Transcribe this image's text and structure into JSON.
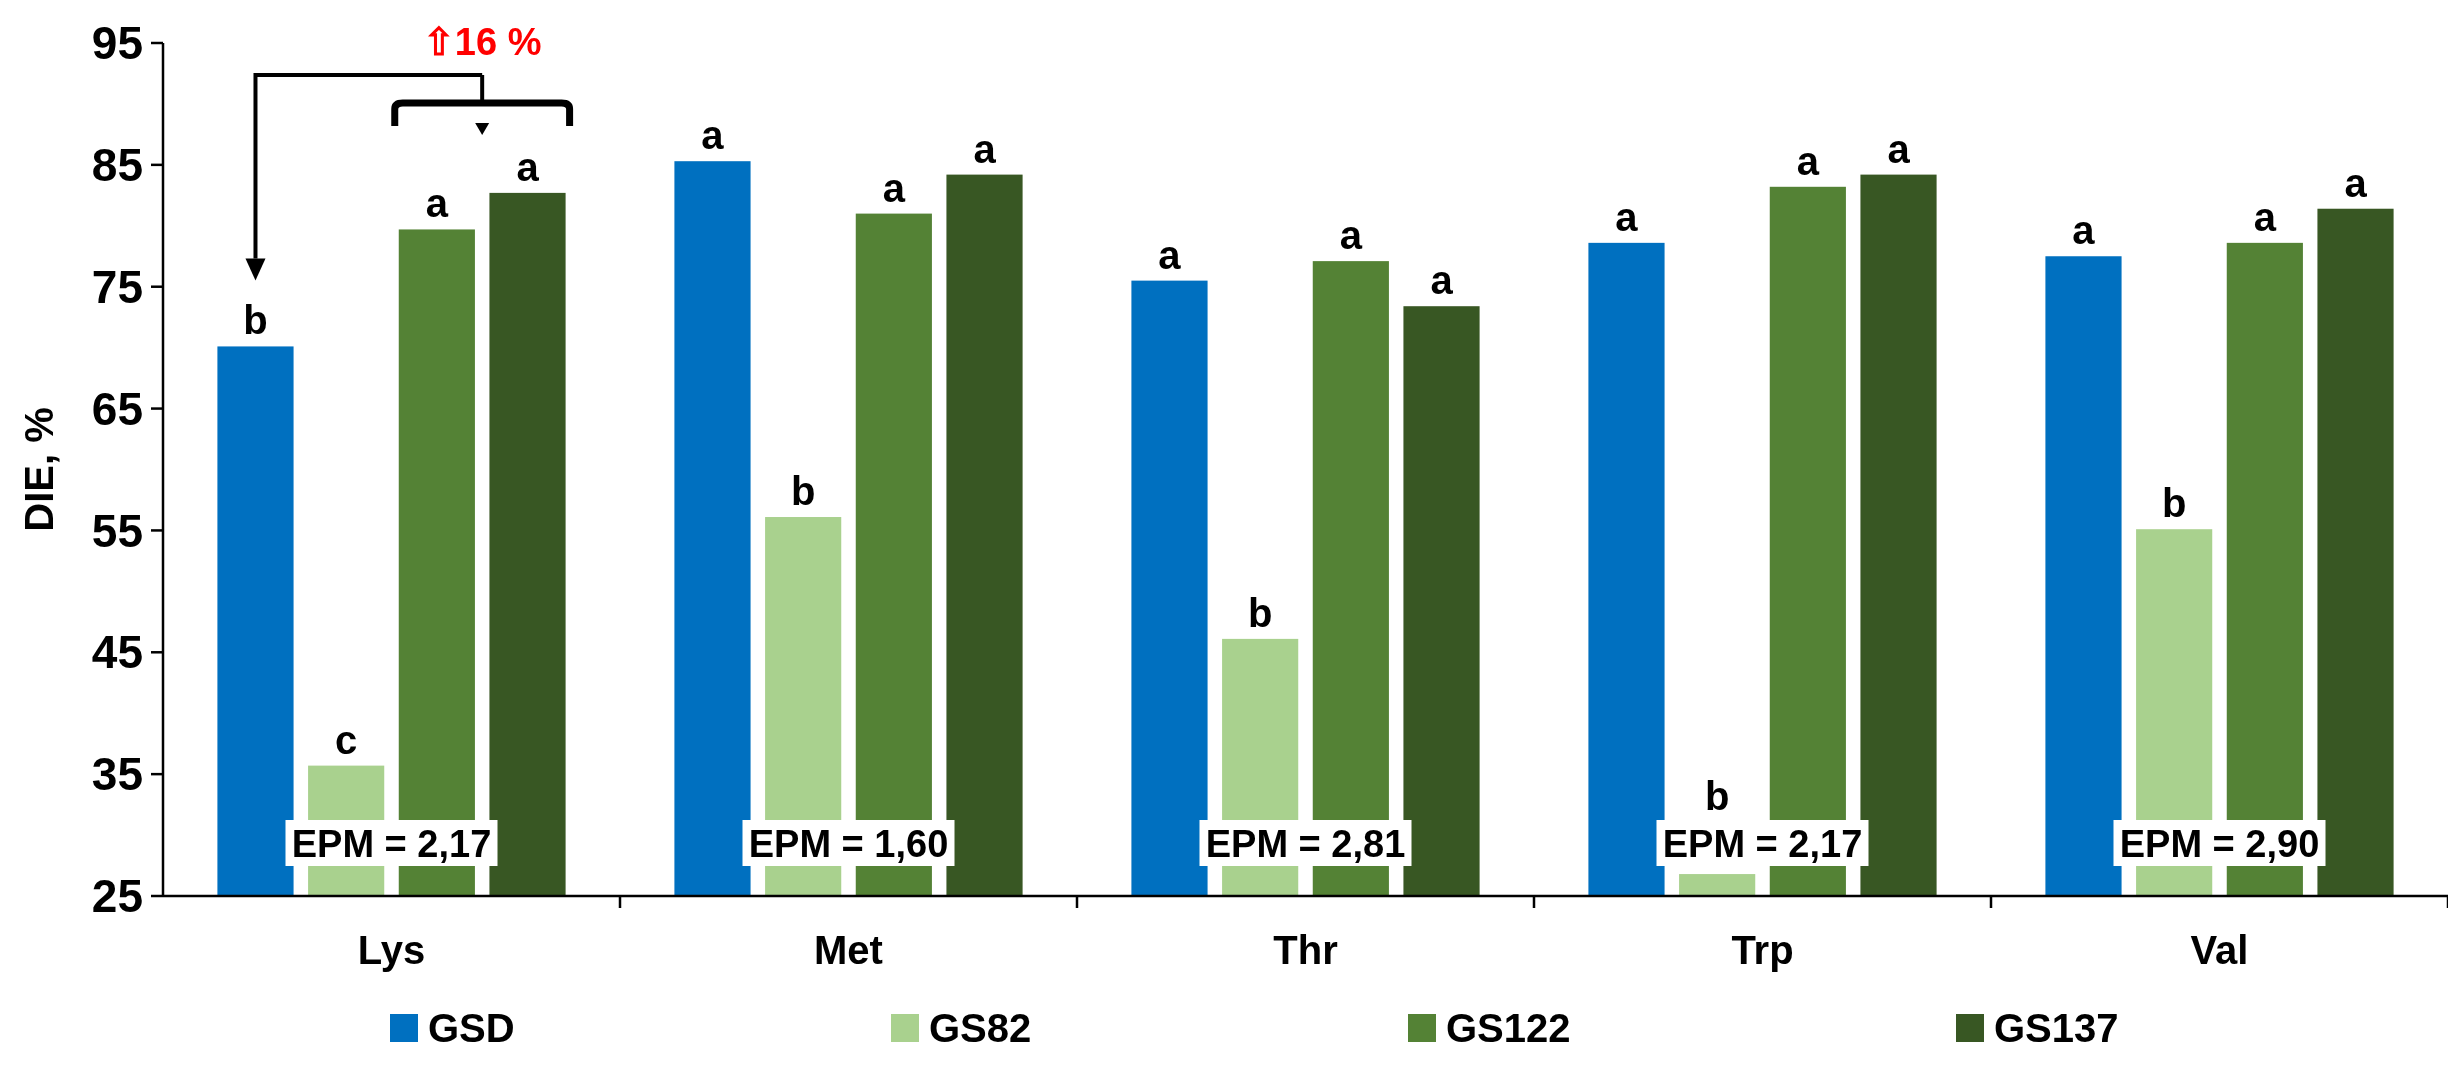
{
  "chart_data": {
    "type": "bar",
    "ylabel": "DIE, %",
    "categories": [
      "Lys",
      "Met",
      "Thr",
      "Trp",
      "Val"
    ],
    "series": [
      {
        "name": "GSD",
        "color": "#0070c0",
        "values": [
          70.1,
          85.3,
          75.5,
          78.6,
          77.5
        ],
        "value_labels": [
          "b",
          "a",
          "a",
          "a",
          "a"
        ]
      },
      {
        "name": "GS82",
        "color": "#a9d18e",
        "values": [
          35.7,
          56.1,
          46.1,
          26.8,
          55.1
        ],
        "value_labels": [
          "c",
          "b",
          "b",
          "b",
          "b"
        ]
      },
      {
        "name": "GS122",
        "color": "#548235",
        "values": [
          79.7,
          81.0,
          77.1,
          83.2,
          78.6
        ],
        "value_labels": [
          "a",
          "a",
          "a",
          "a",
          "a"
        ]
      },
      {
        "name": "GS137",
        "color": "#385723",
        "values": [
          82.7,
          84.2,
          73.4,
          84.2,
          81.4
        ],
        "value_labels": [
          "a",
          "a",
          "a",
          "a",
          "a"
        ]
      }
    ],
    "ylim": [
      25,
      95
    ],
    "yticks": [
      25,
      35,
      45,
      55,
      65,
      75,
      85,
      95
    ],
    "grid": false,
    "legend": "bottom",
    "annotations": [
      "⇧16 %",
      "EPM = 2,17",
      "EPM = 1,60",
      "EPM = 2,81",
      "EPM = 2,17",
      "EPM = 2,90"
    ]
  }
}
